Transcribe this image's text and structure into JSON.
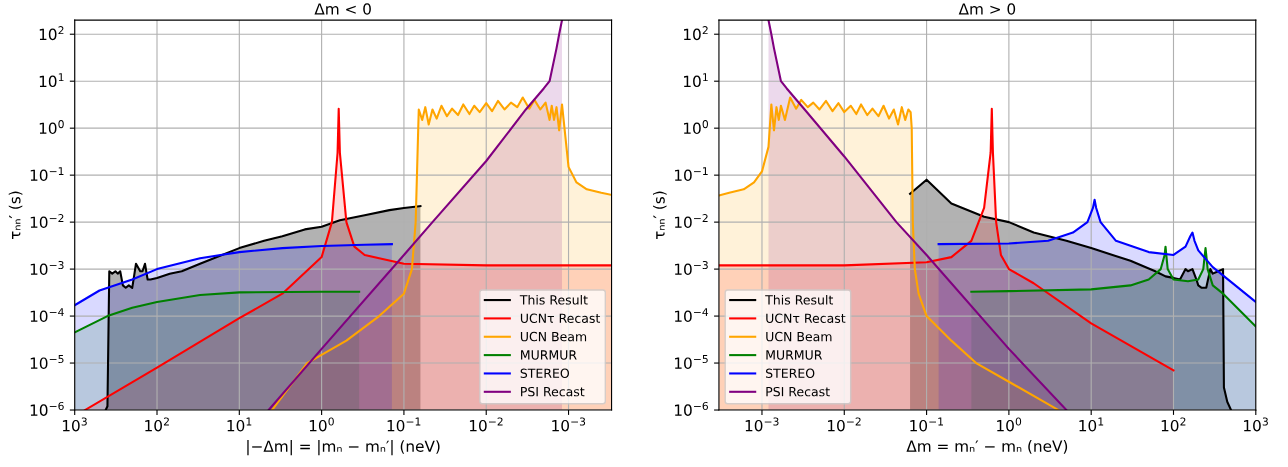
{
  "chart_data": [
    {
      "type": "area",
      "title": "Δm < 0",
      "xlabel": "|−Δm| = |mₙ − mₙ′| (neV)",
      "ylabel": "τₙₙ′ (s)",
      "log": "xy",
      "grid": true,
      "legend": "bottom right",
      "xlim": [
        1000,
        0.0003
      ],
      "ylim": [
        1e-06,
        200
      ],
      "xticks": [
        {
          "value": 1000,
          "label": "10$^{3}$"
        },
        {
          "value": 100,
          "label": "10$^{2}$"
        },
        {
          "value": 10,
          "label": "10$^{1}$"
        },
        {
          "value": 1,
          "label": "10$^{0}$"
        },
        {
          "value": 0.1,
          "label": "10$^{−1}$"
        },
        {
          "value": 0.01,
          "label": "10$^{−2}$"
        },
        {
          "value": 0.001,
          "label": "10$^{−3}$"
        }
      ],
      "yticks": [
        {
          "value": 1e-06,
          "label": "10$^{−6}$"
        },
        {
          "value": 1e-05,
          "label": "10$^{−5}$"
        },
        {
          "value": 0.0001,
          "label": "10$^{−4}$"
        },
        {
          "value": 0.001,
          "label": "10$^{−3}$"
        },
        {
          "value": 0.01,
          "label": "10$^{−2}$"
        },
        {
          "value": 0.1,
          "label": "10$^{−1}$"
        },
        {
          "value": 1,
          "label": "10$^{0}$"
        },
        {
          "value": 10,
          "label": "10$^{1}$"
        },
        {
          "value": 100,
          "label": "10$^{2}$"
        }
      ],
      "series": [
        {
          "name": "This Result",
          "color": "#000000",
          "x": [
            420,
            400,
            380,
            350,
            320,
            300,
            280,
            260,
            240,
            220,
            200,
            180,
            160,
            150,
            140,
            130,
            120,
            100,
            70,
            50,
            30,
            10,
            5,
            3,
            1.6,
            1,
            0.6,
            0.3,
            0.15,
            0.1,
            0.063
          ],
          "values": [
            1e-06,
            1.2e-06,
            0.0009,
            0.0008,
            0.0009,
            0.0008,
            0.0009,
            0.00045,
            0.0004,
            0.00045,
            0.0004,
            0.0013,
            0.0009,
            0.0009,
            0.0013,
            0.0006,
            0.0006,
            0.00065,
            0.0008,
            0.0009,
            0.0013,
            0.0028,
            0.004,
            0.005,
            0.007,
            0.008,
            0.011,
            0.014,
            0.018,
            0.02,
            0.022
          ]
        },
        {
          "name": "UCNτ Recast",
          "color": "#ff0000",
          "x": [
            750,
            100,
            10,
            3,
            1,
            0.75,
            0.64,
            0.62,
            0.6,
            0.5,
            0.4,
            0.3,
            0.2,
            0.1,
            0.01,
            0.001,
            0.0003
          ],
          "values": [
            1e-06,
            8e-06,
            9e-05,
            0.0003,
            0.0018,
            0.01,
            0.3,
            2.6,
            0.3,
            0.01,
            0.003,
            0.002,
            0.0017,
            0.0013,
            0.0012,
            0.0012,
            0.0012
          ]
        },
        {
          "name": "UCN Beam",
          "color": "#ffa500",
          "x": [
            4,
            1.5,
            0.5,
            0.2,
            0.1,
            0.08,
            0.072,
            0.067,
            0.066,
            0.06,
            0.055,
            0.05,
            0.045,
            0.04,
            0.035,
            0.03,
            0.026,
            0.022,
            0.019,
            0.016,
            0.014,
            0.012,
            0.01,
            0.0085,
            0.0072,
            0.006,
            0.005,
            0.0042,
            0.0036,
            0.003,
            0.0026,
            0.0022,
            0.0019,
            0.0017,
            0.0016,
            0.0015,
            0.0014,
            0.0013,
            0.0012,
            0.001,
            0.0008,
            0.0006,
            0.0004,
            0.0003
          ],
          "values": [
            1e-06,
            1e-05,
            3e-05,
            0.0001,
            0.0003,
            0.001,
            0.01,
            1,
            2.5,
            1.5,
            2.8,
            1.2,
            2.5,
            1.6,
            3,
            1.8,
            2.6,
            1.9,
            3.2,
            2,
            3,
            2.2,
            3.4,
            2.3,
            3.8,
            2.5,
            3.5,
            2.8,
            4.5,
            2.6,
            4,
            2.5,
            3.5,
            1.5,
            3,
            1.5,
            2.8,
            0.9,
            3.2,
            0.15,
            0.07,
            0.05,
            0.042,
            0.038
          ]
        },
        {
          "name": "MURMUR",
          "color": "#008000",
          "x": [
            1000,
            400,
            200,
            100,
            30,
            10,
            1,
            0.35
          ],
          "values": [
            4.5e-05,
            0.0001,
            0.00015,
            0.0002,
            0.00028,
            0.00032,
            0.00033,
            0.00033
          ]
        },
        {
          "name": "STEREO",
          "color": "#0000ff",
          "x": [
            1000,
            500,
            200,
            100,
            30,
            10,
            3,
            1,
            0.3,
            0.14
          ],
          "values": [
            0.00017,
            0.00035,
            0.0006,
            0.001,
            0.0017,
            0.0023,
            0.0028,
            0.0031,
            0.0033,
            0.0034
          ]
        },
        {
          "name": "PSI Recast",
          "color": "#800080",
          "x": [
            4.4,
            1,
            0.1,
            0.045,
            0.01,
            0.0033,
            0.002,
            0.0017,
            0.0014,
            0.0013,
            0.0012
          ],
          "values": [
            1e-06,
            2e-05,
            0.002,
            0.01,
            0.2,
            2.5,
            7,
            10,
            50,
            100,
            200
          ]
        }
      ]
    },
    {
      "type": "area",
      "title": "Δm > 0",
      "xlabel": "Δm = mₙ′ − mₙ (neV)",
      "ylabel": "τₙₙ′ (s)",
      "log": "xy",
      "grid": true,
      "legend": "bottom left",
      "xlim": [
        0.0003,
        1000
      ],
      "ylim": [
        1e-06,
        200
      ],
      "xticks": [
        {
          "value": 0.001,
          "label": "10$^{−3}$"
        },
        {
          "value": 0.01,
          "label": "10$^{−2}$"
        },
        {
          "value": 0.1,
          "label": "10$^{−1}$"
        },
        {
          "value": 1,
          "label": "10$^{0}$"
        },
        {
          "value": 10,
          "label": "10$^{1}$"
        },
        {
          "value": 100,
          "label": "10$^{2}$"
        },
        {
          "value": 1000,
          "label": "10$^{3}$"
        }
      ],
      "yticks": [
        {
          "value": 1e-06,
          "label": "10$^{−6}$"
        },
        {
          "value": 1e-05,
          "label": "10$^{−5}$"
        },
        {
          "value": 0.0001,
          "label": "10$^{−4}$"
        },
        {
          "value": 0.001,
          "label": "10$^{−3}$"
        },
        {
          "value": 0.01,
          "label": "10$^{−2}$"
        },
        {
          "value": 0.1,
          "label": "10$^{−1}$"
        },
        {
          "value": 1,
          "label": "10$^{0}$"
        },
        {
          "value": 10,
          "label": "10$^{1}$"
        },
        {
          "value": 100,
          "label": "10$^{2}$"
        }
      ],
      "series": [
        {
          "name": "This Result",
          "color": "#000000",
          "x": [
            0.063,
            0.1,
            0.2,
            0.5,
            1,
            2,
            5,
            10,
            30,
            60,
            80,
            100,
            120,
            140,
            150,
            170,
            190,
            200,
            220,
            250,
            280,
            300,
            350,
            400,
            410,
            450,
            500
          ],
          "values": [
            0.04,
            0.08,
            0.025,
            0.013,
            0.01,
            0.006,
            0.004,
            0.0028,
            0.0015,
            0.0009,
            0.0007,
            0.00065,
            0.0006,
            0.001,
            0.0009,
            0.001,
            0.0006,
            0.00045,
            0.0004,
            0.0004,
            0.001,
            0.0008,
            0.0009,
            0.001,
            3e-06,
            1.5e-06,
            1e-06
          ]
        },
        {
          "name": "UCNτ Recast",
          "color": "#ff0000",
          "x": [
            0.0003,
            0.01,
            0.1,
            0.2,
            0.35,
            0.5,
            0.6,
            0.62,
            0.64,
            0.7,
            0.8,
            1,
            2,
            10,
            100
          ],
          "values": [
            0.0012,
            0.0012,
            0.0014,
            0.0018,
            0.004,
            0.02,
            0.3,
            2.6,
            0.3,
            0.01,
            0.002,
            0.001,
            0.0005,
            7e-05,
            7e-06
          ]
        },
        {
          "name": "UCN Beam",
          "color": "#ffa500",
          "x": [
            0.0003,
            0.0004,
            0.0006,
            0.0008,
            0.001,
            0.0012,
            0.0013,
            0.0014,
            0.0015,
            0.0016,
            0.0017,
            0.0019,
            0.0022,
            0.0026,
            0.003,
            0.0036,
            0.0042,
            0.005,
            0.006,
            0.0072,
            0.0085,
            0.01,
            0.012,
            0.014,
            0.016,
            0.019,
            0.022,
            0.026,
            0.03,
            0.035,
            0.04,
            0.045,
            0.05,
            0.055,
            0.06,
            0.064,
            0.066,
            0.068,
            0.072,
            0.08,
            0.1,
            0.2,
            0.4,
            1,
            4
          ],
          "values": [
            0.037,
            0.042,
            0.05,
            0.07,
            0.12,
            0.4,
            3.2,
            0.9,
            2.8,
            1.5,
            3,
            1.5,
            4.5,
            2.6,
            4,
            2.8,
            3.5,
            2.5,
            3.8,
            2.3,
            3.4,
            2.2,
            3,
            2,
            3.2,
            1.9,
            2.6,
            1.8,
            3,
            1.6,
            2.5,
            1.2,
            2.8,
            1.5,
            2.5,
            2.2,
            1,
            0.01,
            0.001,
            0.0003,
            0.0001,
            3e-05,
            1e-05,
            4e-06,
            1e-06
          ]
        },
        {
          "name": "MURMUR",
          "color": "#008000",
          "x": [
            0.35,
            1,
            10,
            30,
            50,
            70,
            78,
            80,
            85,
            100,
            150,
            200,
            230,
            245,
            250,
            260,
            300,
            400,
            1000
          ],
          "values": [
            0.00033,
            0.00034,
            0.00037,
            0.00045,
            0.0006,
            0.001,
            0.002,
            0.003,
            0.001,
            0.0006,
            0.00055,
            0.0006,
            0.001,
            0.0028,
            0.002,
            0.001,
            0.00045,
            0.0003,
            6e-05
          ]
        },
        {
          "name": "STEREO",
          "color": "#0000ff",
          "x": [
            0.14,
            1,
            3,
            6,
            9,
            10.5,
            11,
            11.5,
            13,
            20,
            50,
            100,
            140,
            160,
            170,
            180,
            200,
            300,
            1000
          ],
          "values": [
            0.0034,
            0.0035,
            0.004,
            0.006,
            0.01,
            0.02,
            0.03,
            0.02,
            0.01,
            0.004,
            0.0023,
            0.002,
            0.003,
            0.005,
            0.006,
            0.004,
            0.0025,
            0.0011,
            0.0002
          ]
        },
        {
          "name": "PSI Recast",
          "color": "#800080",
          "x": [
            0.0012,
            0.0013,
            0.0014,
            0.0017,
            0.002,
            0.0033,
            0.01,
            0.043,
            0.1,
            1,
            5
          ],
          "values": [
            200,
            100,
            50,
            10,
            7,
            2.5,
            0.25,
            0.01,
            0.002,
            2e-05,
            1e-06
          ]
        }
      ]
    }
  ]
}
